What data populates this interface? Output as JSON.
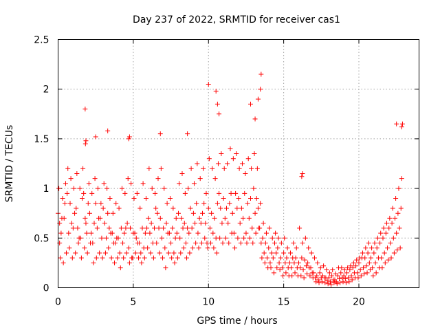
{
  "colors": {
    "series": "#ff0000",
    "axis": "#000000",
    "grid": "#a0a0a0",
    "background": "#ffffff"
  },
  "chart_data": {
    "type": "scatter",
    "marker": "plus",
    "title": "Day 237 of 2022, SRMTID for receiver cas1",
    "xlabel": "GPS time / hours",
    "ylabel": "SRMTID / TECUs",
    "xlim": [
      0,
      24
    ],
    "ylim": [
      0,
      2.5
    ],
    "xticks": [
      0,
      5,
      10,
      15,
      20
    ],
    "xtick_labels": [
      "0",
      "5",
      "10",
      "15",
      "20"
    ],
    "yticks": [
      0,
      0.5,
      1,
      1.5,
      2,
      2.5
    ],
    "ytick_labels": [
      "0",
      "0.5",
      "1",
      "1.5",
      "2",
      "2.5"
    ],
    "grid": true,
    "series": [
      {
        "name": "SRMTID",
        "x": [
          0.0,
          0.2,
          0.4,
          0.6,
          0.8,
          1.0,
          1.2,
          1.4,
          1.6,
          1.8,
          2.0,
          2.2,
          2.4,
          2.6,
          2.8,
          3.0,
          3.2,
          3.4,
          3.6,
          3.8,
          4.0,
          4.2,
          4.4,
          4.6,
          4.8,
          5.0,
          5.2,
          5.4,
          5.6,
          5.8,
          6.0,
          6.2,
          6.4,
          6.6,
          6.8,
          7.0,
          7.2,
          7.4,
          7.6,
          7.8,
          8.0,
          8.2,
          8.4,
          8.6,
          8.8,
          9.0,
          9.2,
          9.4,
          9.6,
          9.8,
          10.0,
          10.2,
          10.4,
          10.6,
          10.8,
          11.0,
          11.2,
          11.4,
          11.6,
          11.8,
          12.0,
          12.2,
          12.4,
          12.6,
          12.8,
          13.0,
          13.2,
          13.4,
          13.6,
          13.8,
          14.0,
          14.2,
          14.4,
          14.6,
          14.8,
          15.0,
          15.2,
          15.4,
          15.6,
          15.8,
          16.0,
          16.2,
          16.4,
          16.6,
          16.8,
          17.0,
          17.2,
          17.4,
          17.6,
          17.8,
          18.0,
          18.2,
          18.4,
          18.6,
          18.8,
          19.0,
          19.2,
          19.4,
          19.6,
          19.8,
          20.0,
          20.2,
          20.4,
          20.6,
          20.8,
          21.0,
          21.2,
          21.4,
          21.6,
          21.8,
          22.0,
          22.2,
          22.4,
          22.6,
          22.8,
          0.1,
          0.3,
          0.5,
          0.7,
          0.9,
          1.1,
          1.3,
          1.5,
          1.7,
          1.9,
          2.1,
          2.3,
          2.5,
          2.7,
          2.9,
          3.1,
          3.3,
          3.5,
          3.7,
          3.9,
          4.1,
          4.3,
          4.5,
          4.7,
          4.9,
          5.1,
          5.3,
          5.5,
          5.7,
          5.9,
          6.1,
          6.3,
          6.5,
          6.7,
          6.9,
          7.1,
          7.3,
          7.5,
          7.7,
          7.9,
          8.1,
          8.3,
          8.5,
          8.7,
          8.9,
          9.1,
          9.3,
          9.5,
          9.7,
          9.9,
          10.1,
          10.3,
          10.5,
          10.7,
          10.9,
          11.1,
          11.3,
          11.5,
          11.7,
          11.9,
          12.1,
          12.3,
          12.5,
          12.7,
          12.9,
          13.1,
          13.3,
          13.5,
          13.7,
          13.9,
          14.1,
          14.3,
          14.5,
          14.7,
          14.9,
          15.1,
          15.3,
          15.5,
          15.7,
          15.9,
          16.1,
          16.3,
          16.5,
          16.7,
          16.9,
          17.1,
          17.3,
          17.5,
          17.7,
          17.9,
          18.1,
          18.3,
          18.5,
          18.7,
          18.9,
          19.1,
          19.3,
          19.5,
          19.7,
          19.9,
          20.1,
          20.3,
          20.5,
          20.7,
          20.9,
          21.1,
          21.3,
          21.5,
          21.7,
          21.9,
          22.1,
          22.3,
          22.5,
          22.7,
          0.05,
          0.25,
          0.45,
          0.65,
          0.85,
          1.05,
          1.25,
          1.45,
          1.65,
          1.85,
          2.05,
          2.25,
          2.45,
          2.65,
          2.85,
          3.05,
          3.25,
          3.45,
          3.65,
          3.85,
          4.05,
          4.25,
          4.45,
          4.65,
          4.85,
          5.05,
          5.25,
          5.45,
          5.65,
          5.85,
          6.05,
          6.25,
          6.45,
          6.65,
          6.85,
          7.05,
          7.25,
          7.45,
          7.65,
          7.85,
          8.05,
          8.25,
          8.45,
          8.65,
          8.85,
          9.05,
          9.25,
          9.45,
          9.65,
          9.85,
          10.05,
          10.25,
          10.45,
          10.65,
          10.85,
          11.05,
          11.25,
          11.45,
          11.65,
          11.85,
          12.05,
          12.25,
          12.45,
          12.65,
          12.85,
          13.05,
          13.25,
          13.45,
          13.65,
          13.85,
          14.05,
          14.25,
          14.45,
          14.65,
          14.85,
          15.05,
          15.25,
          15.45,
          15.65,
          15.85,
          16.05,
          16.25,
          16.45,
          16.65,
          16.85,
          17.05,
          17.25,
          17.45,
          17.65,
          17.85,
          18.05,
          18.25,
          18.45,
          18.65,
          18.85,
          19.05,
          19.25,
          19.45,
          19.65,
          19.85,
          20.05,
          20.25,
          20.45,
          20.65,
          20.85,
          21.05,
          21.25,
          21.45,
          21.65,
          21.85,
          22.05,
          22.25,
          22.45,
          22.65,
          22.85,
          0.15,
          0.35,
          0.55,
          0.75,
          0.95,
          1.15,
          1.35,
          1.55,
          1.75,
          1.95,
          2.15,
          2.35,
          2.55,
          2.75,
          2.95,
          3.15,
          3.35,
          3.55,
          3.75,
          3.95,
          4.15,
          4.35,
          4.55,
          4.75,
          4.95,
          5.15,
          5.35,
          5.55,
          5.75,
          5.95,
          6.15,
          6.35,
          6.55,
          6.75,
          6.95,
          7.15,
          7.35,
          7.55,
          7.75,
          7.95,
          8.15,
          8.35,
          8.55,
          8.75,
          8.95,
          9.15,
          9.35,
          9.55,
          9.75,
          9.95,
          10.15,
          10.35,
          10.55,
          10.75,
          10.95,
          11.15,
          11.35,
          11.55,
          11.75,
          11.95,
          12.15,
          12.35,
          12.55,
          12.75,
          12.95,
          13.15,
          13.35,
          13.55,
          13.75,
          13.95,
          14.15,
          14.35,
          14.55,
          14.75,
          14.95,
          15.15,
          15.35,
          15.55,
          15.75,
          15.95,
          16.15,
          16.35,
          16.55,
          16.75,
          16.95,
          17.15,
          17.35,
          17.55,
          17.75,
          17.95,
          18.15,
          18.35,
          18.55,
          18.75,
          18.95,
          19.15,
          19.35,
          19.55,
          19.75,
          19.95,
          20.15,
          20.35,
          20.55,
          20.75,
          20.95,
          21.15,
          21.35,
          21.55,
          21.75,
          21.95,
          22.15,
          22.35,
          22.55,
          22.75,
          1.8,
          1.85,
          1.82,
          10.0,
          10.5,
          10.6,
          10.7,
          13.5,
          13.45,
          13.3,
          13.1,
          12.8,
          4.7,
          4.75,
          6.8,
          8.6,
          2.5,
          22.5,
          22.9,
          22.85,
          16.2,
          16.25,
          3.3,
          0.1
        ],
        "y": [
          0.75,
          0.55,
          0.7,
          0.95,
          0.85,
          0.6,
          0.8,
          0.5,
          0.9,
          0.7,
          0.85,
          0.55,
          0.65,
          0.6,
          0.7,
          0.8,
          0.5,
          0.6,
          0.55,
          0.45,
          0.5,
          0.6,
          0.55,
          0.65,
          0.6,
          0.55,
          0.5,
          0.45,
          0.6,
          0.55,
          0.7,
          0.65,
          0.6,
          0.75,
          0.7,
          0.6,
          0.65,
          0.55,
          0.6,
          0.5,
          0.75,
          0.7,
          0.65,
          0.6,
          0.8,
          0.75,
          0.85,
          0.7,
          0.75,
          0.65,
          0.8,
          0.75,
          0.7,
          0.85,
          0.8,
          0.9,
          0.8,
          0.85,
          0.75,
          0.95,
          0.9,
          0.8,
          0.95,
          0.85,
          0.9,
          1.0,
          0.9,
          0.6,
          0.5,
          0.45,
          0.4,
          0.35,
          0.45,
          0.4,
          0.3,
          0.35,
          0.3,
          0.25,
          0.3,
          0.3,
          0.25,
          0.3,
          0.28,
          0.25,
          0.2,
          0.15,
          0.12,
          0.15,
          0.12,
          0.1,
          0.1,
          0.12,
          0.08,
          0.12,
          0.15,
          0.12,
          0.15,
          0.18,
          0.2,
          0.22,
          0.25,
          0.3,
          0.3,
          0.35,
          0.3,
          0.35,
          0.4,
          0.45,
          0.5,
          0.55,
          0.6,
          0.65,
          0.7,
          0.75,
          0.8,
          0.45,
          0.9,
          1.05,
          0.55,
          0.65,
          0.75,
          0.6,
          0.5,
          0.95,
          0.55,
          0.75,
          0.45,
          0.85,
          0.7,
          0.5,
          0.65,
          0.75,
          0.55,
          0.45,
          0.5,
          0.35,
          0.45,
          0.6,
          0.4,
          0.3,
          0.55,
          0.45,
          0.35,
          0.4,
          0.6,
          0.55,
          0.45,
          0.8,
          0.6,
          0.5,
          0.4,
          0.55,
          0.45,
          0.35,
          0.55,
          0.5,
          0.6,
          0.45,
          0.55,
          0.6,
          0.65,
          0.55,
          0.65,
          0.85,
          0.45,
          0.6,
          0.55,
          0.5,
          0.95,
          0.65,
          0.7,
          0.65,
          0.95,
          0.55,
          0.8,
          0.65,
          0.7,
          0.55,
          0.7,
          0.6,
          0.75,
          0.8,
          0.45,
          0.35,
          0.3,
          0.25,
          0.3,
          0.35,
          0.25,
          0.2,
          0.25,
          0.2,
          0.2,
          0.25,
          0.2,
          0.2,
          0.18,
          0.22,
          0.2,
          0.15,
          0.1,
          0.08,
          0.1,
          0.1,
          0.07,
          0.06,
          0.08,
          0.06,
          0.09,
          0.1,
          0.09,
          0.1,
          0.12,
          0.15,
          0.15,
          0.18,
          0.2,
          0.22,
          0.25,
          0.2,
          0.25,
          0.3,
          0.3,
          0.35,
          0.4,
          0.45,
          0.5,
          0.55,
          0.6,
          1.0,
          0.7,
          0.85,
          1.2,
          1.1,
          1.0,
          1.15,
          1.0,
          1.2,
          0.65,
          1.05,
          0.95,
          1.1,
          1.0,
          0.85,
          1.05,
          1.0,
          0.9,
          0.75,
          0.85,
          0.8,
          1.0,
          0.95,
          1.1,
          1.05,
          0.9,
          0.95,
          0.8,
          1.05,
          0.9,
          1.2,
          1.0,
          0.95,
          1.1,
          1.2,
          1.0,
          0.85,
          0.9,
          0.8,
          0.7,
          1.05,
          1.15,
          0.95,
          1.0,
          1.2,
          1.05,
          1.25,
          1.1,
          1.2,
          0.95,
          1.3,
          1.2,
          1.1,
          1.25,
          1.35,
          1.2,
          1.25,
          1.4,
          1.3,
          1.35,
          1.2,
          1.25,
          1.15,
          1.3,
          1.2,
          1.35,
          1.2,
          0.85,
          0.65,
          0.55,
          0.6,
          0.5,
          0.55,
          0.5,
          0.45,
          0.5,
          0.4,
          0.35,
          0.45,
          0.4,
          0.6,
          0.45,
          0.5,
          0.4,
          0.35,
          0.3,
          0.25,
          0.2,
          0.22,
          0.18,
          0.15,
          0.18,
          0.14,
          0.2,
          0.2,
          0.18,
          0.2,
          0.22,
          0.25,
          0.28,
          0.3,
          0.35,
          0.4,
          0.45,
          0.4,
          0.45,
          0.5,
          0.55,
          0.6,
          0.65,
          0.7,
          0.8,
          0.9,
          1.0,
          1.1,
          0.3,
          0.25,
          0.35,
          0.4,
          0.3,
          0.35,
          0.45,
          0.3,
          0.4,
          0.35,
          0.45,
          0.25,
          0.3,
          0.35,
          0.3,
          0.35,
          0.4,
          0.3,
          0.25,
          0.3,
          0.2,
          0.3,
          0.35,
          0.25,
          0.3,
          0.35,
          0.3,
          0.25,
          0.3,
          0.4,
          0.35,
          0.3,
          0.45,
          0.35,
          0.3,
          0.2,
          0.35,
          0.3,
          0.25,
          0.3,
          0.35,
          0.4,
          0.3,
          0.35,
          0.4,
          0.45,
          0.4,
          0.45,
          0.5,
          0.4,
          0.45,
          0.4,
          0.35,
          0.5,
          0.45,
          0.5,
          0.45,
          0.55,
          0.4,
          0.5,
          0.45,
          0.5,
          0.45,
          0.5,
          0.45,
          0.55,
          0.6,
          0.3,
          0.25,
          0.2,
          0.2,
          0.15,
          0.2,
          0.18,
          0.12,
          0.15,
          0.12,
          0.12,
          0.15,
          0.12,
          0.12,
          0.1,
          0.14,
          0.12,
          0.1,
          0.06,
          0.05,
          0.06,
          0.05,
          0.04,
          0.03,
          0.05,
          0.04,
          0.05,
          0.06,
          0.05,
          0.06,
          0.08,
          0.1,
          0.1,
          0.12,
          0.14,
          0.15,
          0.18,
          0.12,
          0.15,
          0.2,
          0.2,
          0.25,
          0.28,
          0.3,
          0.35,
          0.38,
          0.4,
          1.8,
          1.48,
          1.45,
          2.05,
          1.98,
          1.85,
          1.75,
          2.15,
          2.0,
          1.9,
          1.7,
          1.85,
          1.5,
          1.52,
          1.55,
          1.55,
          1.52,
          1.65,
          1.65,
          1.62,
          1.12,
          1.15,
          1.58,
          0.65
        ]
      }
    ]
  }
}
